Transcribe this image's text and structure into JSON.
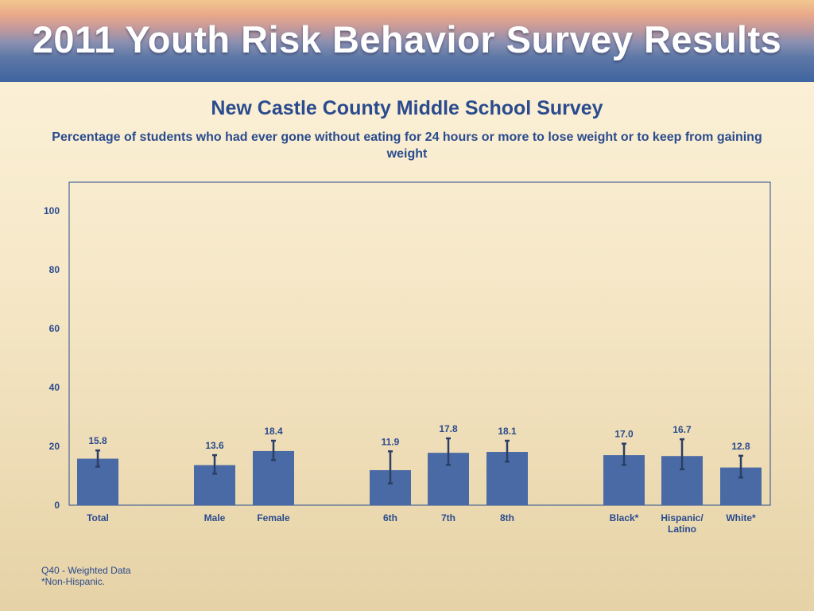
{
  "banner": {
    "title": "2011 Youth Risk Behavior Survey Results"
  },
  "colors": {
    "bar": "#4a6aa5",
    "text": "#2a4b8d",
    "axis": "#2a4b8d",
    "errorbar": "#2b3f66"
  },
  "chart_data": {
    "type": "bar",
    "title": "New Castle County Middle School Survey",
    "subtitle": "Percentage of students who had ever gone without eating for 24 hours or more to lose weight or to keep from gaining weight",
    "ylim": [
      0,
      110
    ],
    "yticks": [
      0,
      20,
      40,
      60,
      80,
      100
    ],
    "categories": [
      {
        "label": "Total",
        "label2": "",
        "value": 15.8,
        "value_label": "15.8",
        "ci_low": 13.1,
        "ci_high": 18.6
      },
      {
        "label": "Male",
        "label2": "",
        "value": 13.6,
        "value_label": "13.6",
        "ci_low": 10.7,
        "ci_high": 17.0
      },
      {
        "label": "Female",
        "label2": "",
        "value": 18.4,
        "value_label": "18.4",
        "ci_low": 15.3,
        "ci_high": 21.9
      },
      {
        "label": "6th",
        "label2": "",
        "value": 11.9,
        "value_label": "11.9",
        "ci_low": 7.4,
        "ci_high": 18.3
      },
      {
        "label": "7th",
        "label2": "",
        "value": 17.8,
        "value_label": "17.8",
        "ci_low": 13.7,
        "ci_high": 22.7
      },
      {
        "label": "8th",
        "label2": "",
        "value": 18.1,
        "value_label": "18.1",
        "ci_low": 14.8,
        "ci_high": 21.9
      },
      {
        "label": "Black*",
        "label2": "",
        "value": 17.0,
        "value_label": "17.0",
        "ci_low": 13.7,
        "ci_high": 20.9
      },
      {
        "label": "Hispanic/",
        "label2": "Latino",
        "value": 16.7,
        "value_label": "16.7",
        "ci_low": 12.2,
        "ci_high": 22.4
      },
      {
        "label": "White*",
        "label2": "",
        "value": 12.8,
        "value_label": "12.8",
        "ci_low": 9.4,
        "ci_high": 16.8
      }
    ]
  },
  "footnotes": {
    "line1": "Q40 - Weighted Data",
    "line2": "*Non-Hispanic."
  }
}
